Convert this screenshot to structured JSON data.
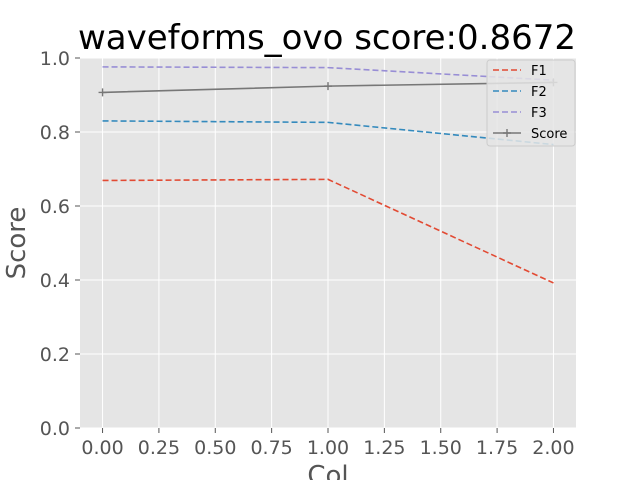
{
  "chart_data": {
    "type": "line",
    "title": "waveforms_ovo score:0.8672",
    "xlabel": "Col",
    "ylabel": "Score",
    "x": [
      0,
      1,
      2
    ],
    "xlim": [
      -0.1,
      2.1
    ],
    "ylim": [
      0.0,
      1.0
    ],
    "xticks": [
      "0.00",
      "0.25",
      "0.50",
      "0.75",
      "1.00",
      "1.25",
      "1.50",
      "1.75",
      "2.00"
    ],
    "yticks": [
      "0.0",
      "0.2",
      "0.4",
      "0.6",
      "0.8",
      "1.0"
    ],
    "grid": true,
    "legend_position": "top-right",
    "series": [
      {
        "name": "F1",
        "values": [
          0.669,
          0.672,
          0.392
        ],
        "color": "#E24A33",
        "style": "dashed",
        "marker": "none"
      },
      {
        "name": "F2",
        "values": [
          0.83,
          0.826,
          0.766
        ],
        "color": "#348ABD",
        "style": "dashed",
        "marker": "none"
      },
      {
        "name": "F3",
        "values": [
          0.976,
          0.974,
          0.94
        ],
        "color": "#988ED5",
        "style": "dashed",
        "marker": "none"
      },
      {
        "name": "Score",
        "values": [
          0.907,
          0.924,
          0.934
        ],
        "color": "#777777",
        "style": "solid",
        "marker": "plus"
      }
    ],
    "background": "#E5E5E5",
    "grid_color": "#FFFFFF"
  }
}
